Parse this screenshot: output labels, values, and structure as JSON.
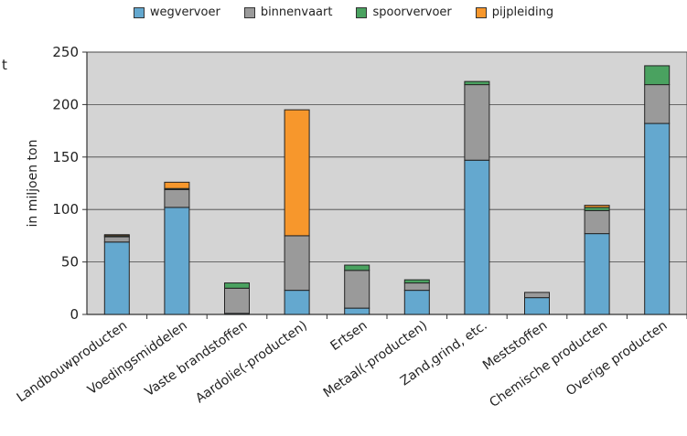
{
  "chart_data": {
    "type": "bar",
    "stacked": true,
    "categories": [
      "Landbouwproducten",
      "Voedingsmiddelen",
      "Vaste brandstoffen",
      "Aardolie(-producten)",
      "Ertsen",
      "Metaal(-producten)",
      "Zand,grind, etc.",
      "Meststoffen",
      "Chemische producten",
      "Overige producten"
    ],
    "series": [
      {
        "name": "wegvervoer",
        "color": "#64a8cf",
        "values": [
          69,
          102,
          1,
          23,
          6,
          23,
          147,
          16,
          77,
          182
        ]
      },
      {
        "name": "binnenvaart",
        "color": "#9a9a9a",
        "values": [
          5,
          17,
          24,
          52,
          36,
          7,
          72,
          5,
          22,
          37
        ]
      },
      {
        "name": "spoorvervoer",
        "color": "#4aa260",
        "values": [
          1,
          1,
          5,
          0,
          5,
          3,
          3,
          0,
          3,
          18
        ]
      },
      {
        "name": "pijpleiding",
        "color": "#f7972c",
        "values": [
          1,
          6,
          0,
          120,
          0,
          0,
          0,
          0,
          2,
          0
        ]
      }
    ],
    "ylabel": "in miljoen ton",
    "ylim": [
      0,
      250
    ],
    "yticks": [
      0,
      50,
      100,
      150,
      200,
      250
    ],
    "grid": "horizontal",
    "legend_position": "top",
    "plot_background": "#d4d4d4"
  },
  "stray_text": "t"
}
